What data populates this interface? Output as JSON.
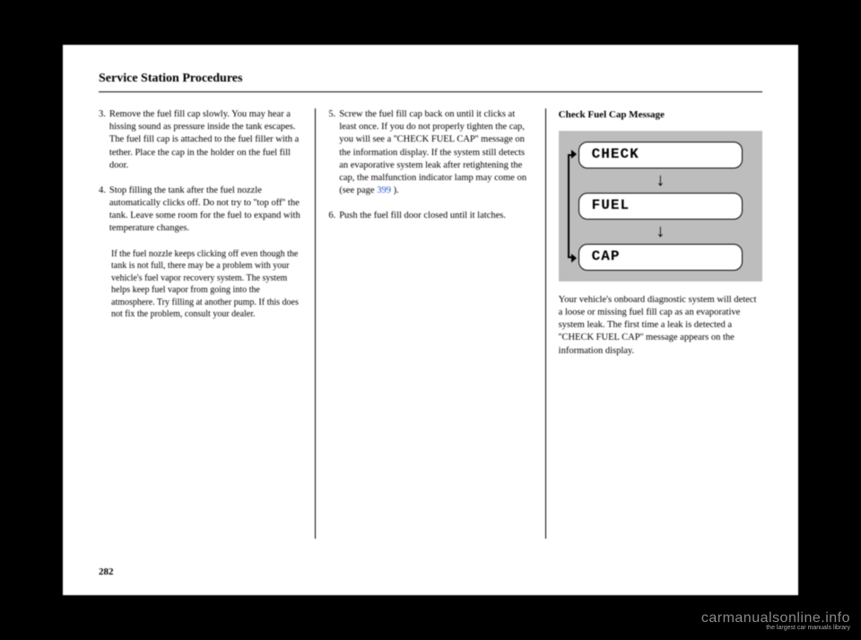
{
  "header": "Service Station Procedures",
  "col1": {
    "step3": {
      "num": "3.",
      "body": "Remove the fuel fill cap slowly. You may hear a hissing sound as pressure inside the tank escapes. The fuel fill cap is attached to the fuel filler with a tether. Place the cap in the holder on the fuel fill door."
    },
    "step4": {
      "num": "4.",
      "body": "Stop filling the tank after the fuel nozzle automatically clicks off. Do not try to ''top off'' the tank. Leave some room for the fuel to expand with temperature changes."
    },
    "note": "If the fuel nozzle keeps clicking off even though the tank is not full, there may be a problem with your vehicle's fuel vapor recovery system. The system helps keep fuel vapor from going into the atmosphere. Try filling at another pump. If this does not fix the problem, consult your dealer."
  },
  "col2": {
    "step5": {
      "num": "5.",
      "body_pre": "Screw the fuel fill cap back on until it clicks at least once. If you do not properly tighten the cap, you will see a ''CHECK FUEL CAP'' message on the information display. If the system still detects an evaporative system leak after retightening the cap, the malfunction indicator lamp may come on (see page ",
      "link": "399",
      "body_post": " )."
    },
    "step6": {
      "num": "6.",
      "body": "Push the fuel fill door closed until it latches."
    }
  },
  "col3": {
    "heading": "Check Fuel Cap Message",
    "diagram": {
      "line1": "CHECK",
      "line2": "FUEL",
      "line3": "CAP",
      "arrow": "↓",
      "bg": "#bdbdbd",
      "box_bg": "#ffffff"
    },
    "desc": "Your vehicle's onboard diagnostic system will detect a loose or missing fuel fill cap as an evaporative system leak. The first time a leak is detected a ''CHECK FUEL CAP'' message appears on the information display."
  },
  "page_num": "282",
  "watermark": {
    "main": "carmanualsonline.info",
    "sub": "the largest car manuals library"
  }
}
